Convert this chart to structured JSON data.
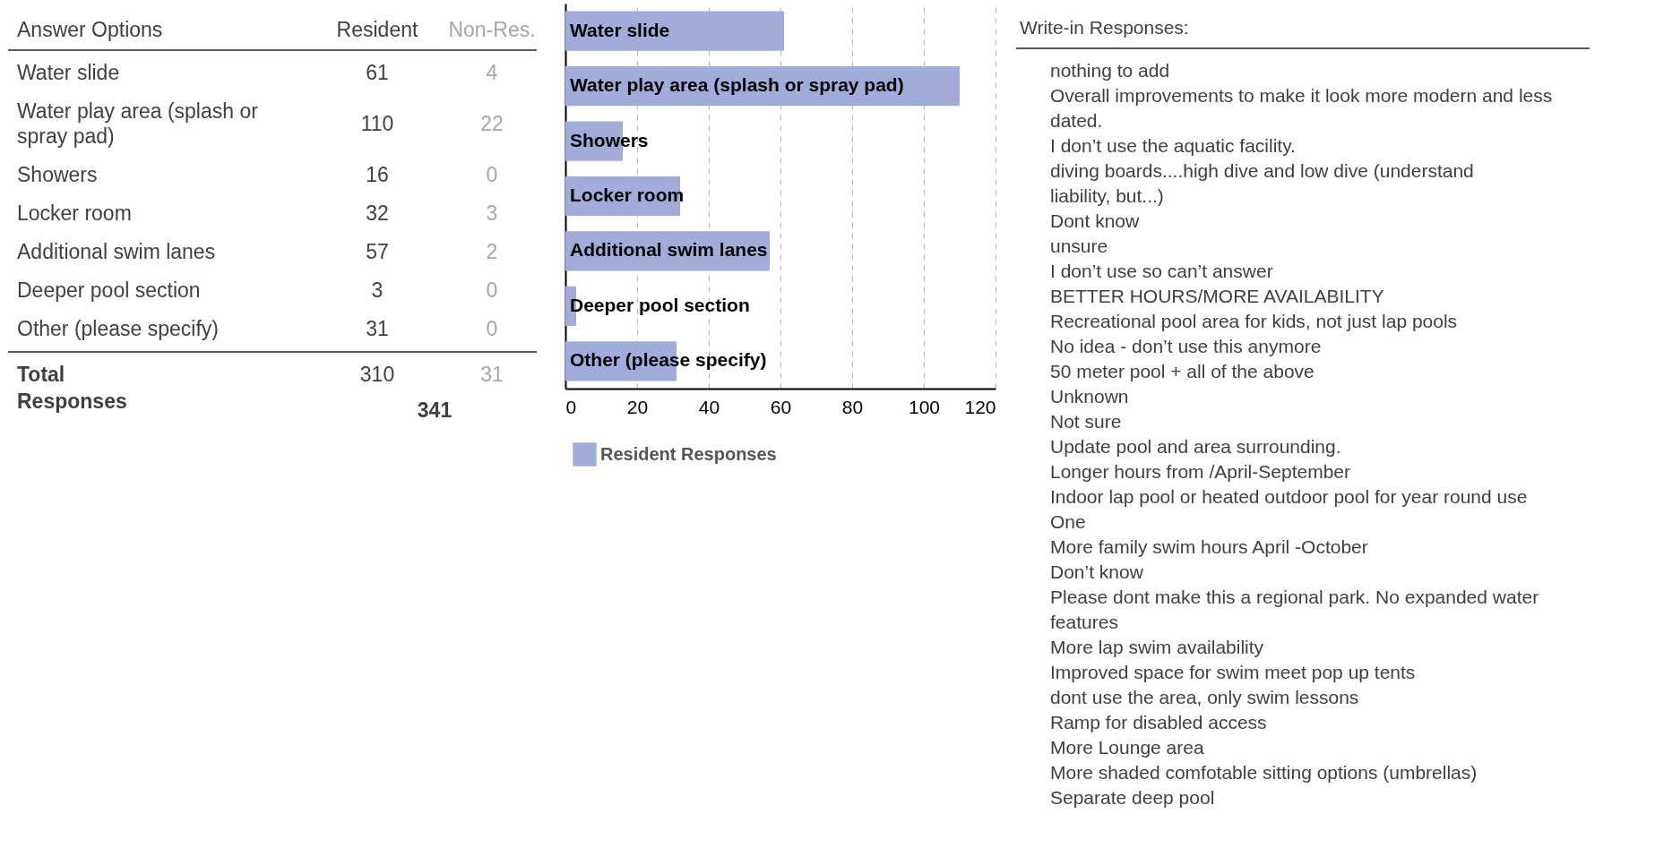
{
  "chart_data": [
    {
      "type": "other",
      "title": "Answer Options",
      "categories": [
        "Water slide",
        "Water play area (splash or spray pad)",
        "Showers",
        "Locker room",
        "Additional swim lanes",
        "Deeper pool section",
        "Other (please specify)"
      ],
      "series": [
        {
          "name": "Resident",
          "color": "#404040",
          "values": [
            61,
            110,
            16,
            32,
            57,
            3,
            31
          ]
        },
        {
          "name": "Non-Res.",
          "color": "#a6a6a6",
          "values": [
            4,
            22,
            0,
            3,
            2,
            0,
            0
          ]
        }
      ],
      "data_labels": true,
      "annotations": [
        "Total Responses",
        "310",
        "31",
        "341"
      ]
    },
    {
      "type": "bar",
      "orientation": "horizontal",
      "categories": [
        "Water slide",
        "Water play area (splash or spray pad)",
        "Showers",
        "Locker room",
        "Additional swim lanes",
        "Deeper pool section",
        "Other (please specify)"
      ],
      "series": [
        {
          "name": "Resident Responses",
          "color": "#a2acdb",
          "values": [
            61,
            110,
            16,
            32,
            57,
            3,
            31
          ]
        }
      ],
      "xlim": [
        0,
        120
      ],
      "xticks": [
        0,
        20,
        40,
        60,
        80,
        100,
        120
      ],
      "grid": "x",
      "legend": "bottom"
    },
    {
      "type": "other",
      "title": "Write-in Responses:",
      "annotations": [
        "nothing to add",
        "Overall improvements to make it look more modern and less dated.",
        "I don’t use the aquatic facility.",
        "diving boards....high dive and low dive (understand liability, but...)",
        "Dont know",
        "unsure",
        "I don’t use so can’t answer",
        "BETTER HOURS/MORE AVAILABILITY",
        "Recreational pool area for kids, not just lap pools",
        "No idea - don’t use this anymore",
        "50 meter pool + all of the above",
        "Unknown",
        "Not sure",
        "Update pool and area surrounding.",
        "Longer hours from /April-September",
        "Indoor lap pool or heated outdoor pool for year round use",
        "One",
        "More family swim hours April -October",
        "Don’t know",
        "Please dont make this a regional park.  No expanded water features",
        "More lap swim availability",
        "Improved space for swim meet pop up tents",
        "dont use the area, only swim lessons",
        "Ramp for disabled access",
        "More Lounge area",
        "More shaded comfotable sitting options (umbrellas)",
        "Separate deep pool"
      ]
    }
  ]
}
